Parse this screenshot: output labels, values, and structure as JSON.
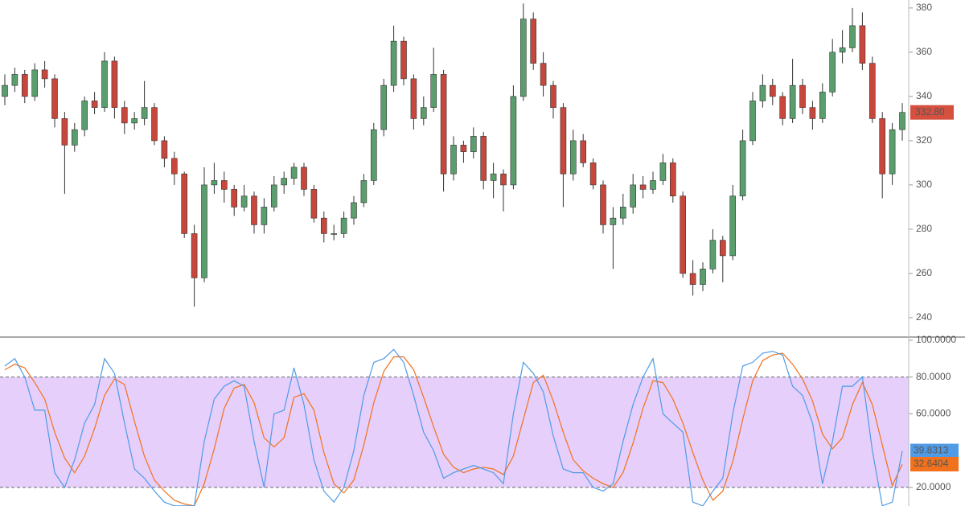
{
  "chart_data": [
    {
      "type": "candlestick",
      "ohlc": [
        [
          340,
          350,
          336,
          345
        ],
        [
          345,
          353,
          342,
          350
        ],
        [
          350,
          352,
          337,
          340
        ],
        [
          340,
          355,
          338,
          352
        ],
        [
          352,
          356,
          344,
          348
        ],
        [
          348,
          350,
          326,
          330
        ],
        [
          330,
          333,
          296,
          318
        ],
        [
          318,
          328,
          315,
          325
        ],
        [
          325,
          340,
          322,
          338
        ],
        [
          338,
          342,
          332,
          335
        ],
        [
          335,
          360,
          333,
          356
        ],
        [
          356,
          358,
          330,
          335
        ],
        [
          335,
          338,
          323,
          328
        ],
        [
          328,
          333,
          325,
          330
        ],
        [
          330,
          347,
          327,
          335
        ],
        [
          335,
          337,
          318,
          320
        ],
        [
          320,
          322,
          308,
          312
        ],
        [
          312,
          315,
          300,
          305
        ],
        [
          305,
          306,
          276,
          278
        ],
        [
          278,
          282,
          245,
          258
        ],
        [
          258,
          308,
          256,
          300
        ],
        [
          300,
          310,
          296,
          302
        ],
        [
          302,
          306,
          292,
          298
        ],
        [
          298,
          300,
          286,
          290
        ],
        [
          290,
          300,
          288,
          295
        ],
        [
          295,
          297,
          278,
          282
        ],
        [
          282,
          294,
          278,
          290
        ],
        [
          290,
          304,
          288,
          300
        ],
        [
          300,
          306,
          296,
          303
        ],
        [
          303,
          310,
          300,
          308
        ],
        [
          308,
          310,
          295,
          298
        ],
        [
          298,
          300,
          283,
          285
        ],
        [
          285,
          288,
          274,
          278
        ],
        [
          278,
          282,
          275,
          278
        ],
        [
          278,
          288,
          276,
          285
        ],
        [
          285,
          295,
          282,
          292
        ],
        [
          292,
          305,
          290,
          302
        ],
        [
          302,
          328,
          300,
          325
        ],
        [
          325,
          348,
          322,
          345
        ],
        [
          345,
          372,
          342,
          365
        ],
        [
          365,
          367,
          345,
          348
        ],
        [
          348,
          350,
          325,
          330
        ],
        [
          330,
          340,
          327,
          335
        ],
        [
          335,
          362,
          333,
          350
        ],
        [
          350,
          352,
          297,
          305
        ],
        [
          305,
          322,
          302,
          318
        ],
        [
          318,
          320,
          310,
          315
        ],
        [
          315,
          326,
          312,
          322
        ],
        [
          322,
          324,
          298,
          302
        ],
        [
          302,
          310,
          294,
          305
        ],
        [
          305,
          307,
          288,
          300
        ],
        [
          300,
          345,
          298,
          340
        ],
        [
          340,
          382,
          338,
          375
        ],
        [
          375,
          378,
          352,
          355
        ],
        [
          355,
          360,
          340,
          345
        ],
        [
          345,
          347,
          330,
          335
        ],
        [
          335,
          337,
          290,
          305
        ],
        [
          305,
          325,
          302,
          320
        ],
        [
          320,
          323,
          308,
          310
        ],
        [
          310,
          312,
          298,
          300
        ],
        [
          300,
          302,
          278,
          282
        ],
        [
          282,
          290,
          262,
          285
        ],
        [
          285,
          296,
          282,
          290
        ],
        [
          290,
          305,
          287,
          300
        ],
        [
          300,
          304,
          294,
          298
        ],
        [
          298,
          306,
          296,
          302
        ],
        [
          302,
          314,
          300,
          310
        ],
        [
          310,
          312,
          292,
          295
        ],
        [
          295,
          297,
          258,
          260
        ],
        [
          260,
          266,
          250,
          255
        ],
        [
          255,
          265,
          252,
          262
        ],
        [
          262,
          280,
          260,
          275
        ],
        [
          275,
          277,
          256,
          268
        ],
        [
          268,
          300,
          266,
          295
        ],
        [
          295,
          325,
          293,
          320
        ],
        [
          320,
          342,
          318,
          338
        ],
        [
          338,
          350,
          335,
          345
        ],
        [
          345,
          348,
          336,
          340
        ],
        [
          340,
          342,
          327,
          330
        ],
        [
          330,
          357,
          328,
          345
        ],
        [
          345,
          348,
          332,
          335
        ],
        [
          335,
          338,
          325,
          330
        ],
        [
          330,
          346,
          328,
          342
        ],
        [
          342,
          366,
          340,
          360
        ],
        [
          360,
          370,
          355,
          362
        ],
        [
          362,
          380,
          360,
          372
        ],
        [
          372,
          378,
          352,
          355
        ],
        [
          355,
          358,
          328,
          330
        ],
        [
          330,
          333,
          294,
          305
        ],
        [
          305,
          328,
          300,
          325
        ],
        [
          325,
          337,
          320,
          332.8
        ]
      ],
      "up_color": "#5a9e6e",
      "down_color": "#c8473c",
      "last_label": "332.80",
      "last_label_color": "#d5503f",
      "ylim": [
        231.6,
        383.6
      ],
      "yticks": [
        240,
        260,
        280,
        300,
        320,
        340,
        360,
        380
      ]
    },
    {
      "type": "line",
      "series": [
        {
          "color": "#4f9be6",
          "last_label": "39.8313",
          "values": [
            86,
            90,
            80,
            62,
            62,
            28,
            20,
            35,
            55,
            65,
            90,
            82,
            55,
            30,
            25,
            18,
            12,
            10,
            10,
            10,
            45,
            68,
            75,
            78,
            75,
            45,
            20,
            60,
            62,
            85,
            65,
            35,
            18,
            12,
            20,
            40,
            70,
            88,
            90,
            95,
            88,
            70,
            50,
            40,
            25,
            28,
            30,
            32,
            30,
            28,
            22,
            60,
            88,
            82,
            72,
            48,
            30,
            28,
            28,
            20,
            18,
            22,
            45,
            65,
            80,
            90,
            60,
            55,
            50,
            12,
            10,
            18,
            25,
            60,
            86,
            88,
            93,
            94,
            92,
            75,
            70,
            55,
            22,
            45,
            75,
            75,
            80,
            40,
            10,
            12,
            39.8313
          ]
        },
        {
          "color": "#f2711c",
          "last_label": "32.6404",
          "values": [
            84,
            87,
            85,
            77,
            68,
            50,
            36,
            28,
            37,
            52,
            70,
            79,
            76,
            56,
            37,
            24,
            18,
            13,
            11,
            10,
            22,
            41,
            63,
            74,
            76,
            66,
            47,
            42,
            47,
            69,
            71,
            62,
            39,
            22,
            17,
            24,
            43,
            66,
            83,
            91,
            91,
            84,
            69,
            53,
            38,
            31,
            28,
            30,
            31,
            30,
            27,
            37,
            57,
            77,
            81,
            67,
            50,
            35,
            29,
            25,
            22,
            20,
            28,
            44,
            63,
            78,
            77,
            68,
            55,
            39,
            24,
            13,
            18,
            34,
            57,
            78,
            89,
            92,
            93,
            87,
            79,
            67,
            49,
            41,
            47,
            65,
            77,
            65,
            43,
            21,
            32.6404
          ]
        }
      ],
      "band": [
        20,
        80
      ],
      "band_color": "#e6cffb",
      "ylim": [
        9.9,
        101.3
      ],
      "yticks": [
        {
          "value": 100,
          "label": "100.0000"
        },
        {
          "value": 80,
          "label": "80.0000"
        },
        {
          "value": 60,
          "label": "60.0000"
        },
        {
          "value": 20,
          "label": "20.0000"
        }
      ]
    }
  ]
}
